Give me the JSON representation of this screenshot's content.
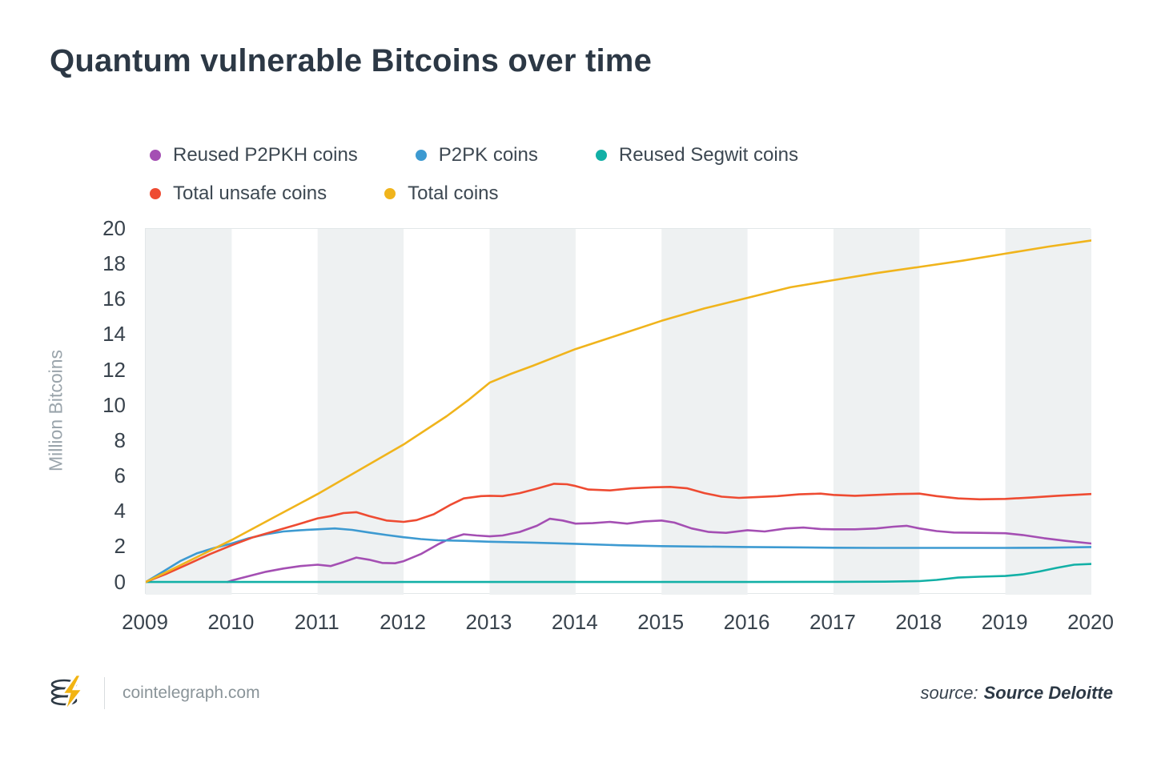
{
  "title": "Quantum vulnerable Bitcoins over time",
  "legend": [
    {
      "label": "Reused P2PKH coins",
      "color": "#a44fb3"
    },
    {
      "label": "P2PK coins",
      "color": "#3d9ad1"
    },
    {
      "label": "Reused Segwit coins",
      "color": "#12b0a6"
    },
    {
      "label": "Total unsafe coins",
      "color": "#ee4b32"
    },
    {
      "label": "Total coins",
      "color": "#f0b41c"
    }
  ],
  "footer": {
    "site": "cointelegraph.com",
    "source_prefix": "source:",
    "source_name": "Source Deloitte"
  },
  "colors": {
    "title_text": "#2c3845",
    "axis_text": "#39434d",
    "muted_text": "#9aa4ab",
    "band": "#eef1f2",
    "plot_border": "#e2e7e9",
    "logo_yellow": "#f2b413",
    "logo_dark": "#2d3944"
  },
  "chart_data": {
    "type": "line",
    "title": "Quantum vulnerable Bitcoins over time",
    "xlabel": "",
    "ylabel": "Million Bitcoins",
    "legend_position": "top",
    "grid": "vertical-year-bands-alternating",
    "band_color": "#eef1f2",
    "xlim": [
      2009,
      2020
    ],
    "ylim": [
      -0.7,
      20
    ],
    "x_ticks": [
      2009,
      2010,
      2011,
      2012,
      2013,
      2014,
      2015,
      2016,
      2017,
      2018,
      2019,
      2020
    ],
    "y_ticks": [
      0,
      2,
      4,
      6,
      8,
      10,
      12,
      14,
      16,
      18,
      20
    ],
    "series": [
      {
        "id": "reused-p2pkh",
        "name": "Reused P2PKH coins",
        "color": "#a44fb3",
        "points": [
          [
            2009.95,
            0.02
          ],
          [
            2010,
            0.1
          ],
          [
            2010.2,
            0.35
          ],
          [
            2010.4,
            0.6
          ],
          [
            2010.6,
            0.78
          ],
          [
            2010.8,
            0.92
          ],
          [
            2011,
            1.0
          ],
          [
            2011.15,
            0.92
          ],
          [
            2011.3,
            1.15
          ],
          [
            2011.45,
            1.4
          ],
          [
            2011.6,
            1.28
          ],
          [
            2011.75,
            1.1
          ],
          [
            2011.9,
            1.08
          ],
          [
            2012,
            1.2
          ],
          [
            2012.2,
            1.6
          ],
          [
            2012.4,
            2.15
          ],
          [
            2012.55,
            2.5
          ],
          [
            2012.7,
            2.72
          ],
          [
            2012.85,
            2.65
          ],
          [
            2013,
            2.6
          ],
          [
            2013.15,
            2.65
          ],
          [
            2013.35,
            2.85
          ],
          [
            2013.55,
            3.2
          ],
          [
            2013.7,
            3.6
          ],
          [
            2013.85,
            3.5
          ],
          [
            2014,
            3.32
          ],
          [
            2014.2,
            3.35
          ],
          [
            2014.4,
            3.42
          ],
          [
            2014.6,
            3.32
          ],
          [
            2014.8,
            3.45
          ],
          [
            2015,
            3.5
          ],
          [
            2015.15,
            3.38
          ],
          [
            2015.35,
            3.05
          ],
          [
            2015.55,
            2.85
          ],
          [
            2015.75,
            2.8
          ],
          [
            2016,
            2.95
          ],
          [
            2016.2,
            2.88
          ],
          [
            2016.45,
            3.05
          ],
          [
            2016.65,
            3.1
          ],
          [
            2016.85,
            3.02
          ],
          [
            2017,
            3.0
          ],
          [
            2017.25,
            3.0
          ],
          [
            2017.5,
            3.05
          ],
          [
            2017.7,
            3.15
          ],
          [
            2017.85,
            3.2
          ],
          [
            2018,
            3.05
          ],
          [
            2018.2,
            2.9
          ],
          [
            2018.4,
            2.82
          ],
          [
            2018.7,
            2.8
          ],
          [
            2019,
            2.78
          ],
          [
            2019.2,
            2.68
          ],
          [
            2019.45,
            2.5
          ],
          [
            2019.7,
            2.35
          ],
          [
            2020,
            2.2
          ]
        ]
      },
      {
        "id": "p2pk",
        "name": "P2PK coins",
        "color": "#3d9ad1",
        "points": [
          [
            2009,
            0.02
          ],
          [
            2009.2,
            0.6
          ],
          [
            2009.4,
            1.2
          ],
          [
            2009.6,
            1.65
          ],
          [
            2009.8,
            1.95
          ],
          [
            2010,
            2.2
          ],
          [
            2010.2,
            2.5
          ],
          [
            2010.4,
            2.72
          ],
          [
            2010.6,
            2.88
          ],
          [
            2010.8,
            2.95
          ],
          [
            2011,
            3.0
          ],
          [
            2011.2,
            3.05
          ],
          [
            2011.4,
            2.97
          ],
          [
            2011.6,
            2.82
          ],
          [
            2011.8,
            2.68
          ],
          [
            2012,
            2.55
          ],
          [
            2012.2,
            2.45
          ],
          [
            2012.4,
            2.38
          ],
          [
            2012.7,
            2.35
          ],
          [
            2013,
            2.3
          ],
          [
            2013.5,
            2.25
          ],
          [
            2014,
            2.18
          ],
          [
            2014.5,
            2.1
          ],
          [
            2015,
            2.05
          ],
          [
            2015.5,
            2.02
          ],
          [
            2016,
            2.0
          ],
          [
            2016.5,
            1.98
          ],
          [
            2017,
            1.96
          ],
          [
            2017.5,
            1.95
          ],
          [
            2018,
            1.95
          ],
          [
            2018.5,
            1.95
          ],
          [
            2019,
            1.95
          ],
          [
            2019.5,
            1.96
          ],
          [
            2020,
            2.0
          ]
        ]
      },
      {
        "id": "reused-segwit",
        "name": "Reused Segwit coins",
        "color": "#12b0a6",
        "points": [
          [
            2009,
            0.02
          ],
          [
            2016,
            0.02
          ],
          [
            2017,
            0.03
          ],
          [
            2017.6,
            0.04
          ],
          [
            2018,
            0.07
          ],
          [
            2018.2,
            0.14
          ],
          [
            2018.45,
            0.27
          ],
          [
            2018.7,
            0.32
          ],
          [
            2019,
            0.36
          ],
          [
            2019.2,
            0.45
          ],
          [
            2019.4,
            0.62
          ],
          [
            2019.6,
            0.82
          ],
          [
            2019.8,
            1.0
          ],
          [
            2020,
            1.04
          ]
        ]
      },
      {
        "id": "total-unsafe",
        "name": "Total unsafe coins",
        "color": "#ee4b32",
        "points": [
          [
            2009,
            0.02
          ],
          [
            2009.25,
            0.5
          ],
          [
            2009.5,
            1.05
          ],
          [
            2009.75,
            1.6
          ],
          [
            2010,
            2.1
          ],
          [
            2010.25,
            2.55
          ],
          [
            2010.5,
            2.9
          ],
          [
            2010.75,
            3.25
          ],
          [
            2011,
            3.62
          ],
          [
            2011.15,
            3.75
          ],
          [
            2011.3,
            3.92
          ],
          [
            2011.45,
            3.97
          ],
          [
            2011.6,
            3.75
          ],
          [
            2011.8,
            3.5
          ],
          [
            2012,
            3.42
          ],
          [
            2012.15,
            3.52
          ],
          [
            2012.35,
            3.85
          ],
          [
            2012.55,
            4.4
          ],
          [
            2012.7,
            4.75
          ],
          [
            2012.9,
            4.88
          ],
          [
            2013,
            4.9
          ],
          [
            2013.15,
            4.88
          ],
          [
            2013.35,
            5.05
          ],
          [
            2013.55,
            5.3
          ],
          [
            2013.75,
            5.58
          ],
          [
            2013.9,
            5.55
          ],
          [
            2014,
            5.45
          ],
          [
            2014.15,
            5.25
          ],
          [
            2014.4,
            5.2
          ],
          [
            2014.65,
            5.32
          ],
          [
            2014.9,
            5.38
          ],
          [
            2015.1,
            5.4
          ],
          [
            2015.3,
            5.32
          ],
          [
            2015.5,
            5.05
          ],
          [
            2015.7,
            4.85
          ],
          [
            2015.9,
            4.78
          ],
          [
            2016.1,
            4.82
          ],
          [
            2016.35,
            4.88
          ],
          [
            2016.6,
            4.98
          ],
          [
            2016.85,
            5.02
          ],
          [
            2017,
            4.95
          ],
          [
            2017.25,
            4.9
          ],
          [
            2017.5,
            4.95
          ],
          [
            2017.75,
            5.0
          ],
          [
            2018,
            5.02
          ],
          [
            2018.2,
            4.88
          ],
          [
            2018.45,
            4.75
          ],
          [
            2018.7,
            4.7
          ],
          [
            2019,
            4.72
          ],
          [
            2019.3,
            4.8
          ],
          [
            2019.6,
            4.9
          ],
          [
            2020,
            5.0
          ]
        ]
      },
      {
        "id": "total",
        "name": "Total coins",
        "color": "#f0b41c",
        "points": [
          [
            2009,
            0.02
          ],
          [
            2009.25,
            0.6
          ],
          [
            2009.5,
            1.2
          ],
          [
            2009.75,
            1.8
          ],
          [
            2010,
            2.4
          ],
          [
            2010.5,
            3.7
          ],
          [
            2011,
            5.0
          ],
          [
            2011.5,
            6.4
          ],
          [
            2012,
            7.8
          ],
          [
            2012.5,
            9.4
          ],
          [
            2012.75,
            10.3
          ],
          [
            2013,
            11.3
          ],
          [
            2013.25,
            11.8
          ],
          [
            2013.5,
            12.25
          ],
          [
            2014,
            13.2
          ],
          [
            2014.5,
            14.0
          ],
          [
            2015,
            14.8
          ],
          [
            2015.5,
            15.5
          ],
          [
            2016,
            16.1
          ],
          [
            2016.5,
            16.7
          ],
          [
            2017,
            17.1
          ],
          [
            2017.5,
            17.5
          ],
          [
            2018,
            17.85
          ],
          [
            2018.5,
            18.2
          ],
          [
            2019,
            18.6
          ],
          [
            2019.5,
            19.0
          ],
          [
            2020,
            19.35
          ]
        ]
      }
    ]
  }
}
